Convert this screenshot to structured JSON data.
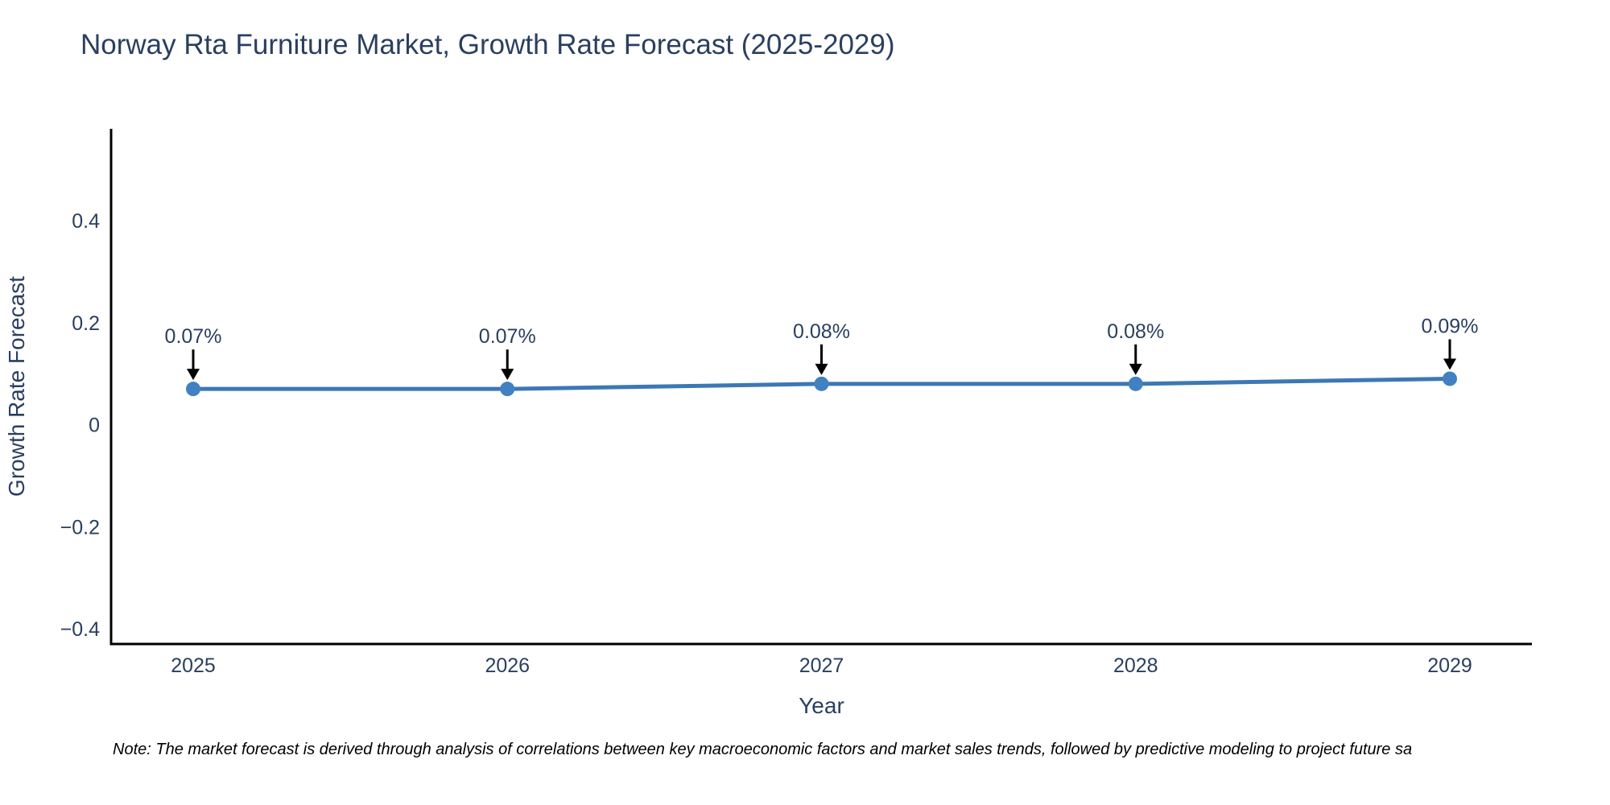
{
  "footnote": "Note: The market forecast is derived through analysis of correlations between key macroeconomic factors and market sales trends, followed by predictive modeling to project future sa",
  "chart_data": {
    "type": "line",
    "title": "Norway Rta Furniture Market, Growth Rate Forecast (2025-2029)",
    "xlabel": "Year",
    "ylabel": "Growth Rate Forecast",
    "categories": [
      "2025",
      "2026",
      "2027",
      "2028",
      "2029"
    ],
    "series": [
      {
        "name": "Growth Rate Forecast",
        "values": [
          0.07,
          0.07,
          0.08,
          0.08,
          0.09
        ]
      }
    ],
    "point_labels": [
      "0.07%",
      "0.07%",
      "0.08%",
      "0.08%",
      "0.09%"
    ],
    "ylim": [
      -0.43,
      0.58
    ],
    "ytick_values": [
      0.4,
      0.2,
      0,
      -0.2,
      -0.4
    ],
    "ytick_labels": [
      "0.4",
      "0.2",
      "0",
      "−0.2",
      "−0.4"
    ],
    "grid": false,
    "legend_position": "none",
    "annotations_have_arrows": true,
    "colors": {
      "line": "#3c78b4",
      "marker": "#4181c2",
      "text": "#2a3f5f",
      "axis": "#000000",
      "annotation_arrow": "#000000",
      "background": "#ffffff"
    }
  }
}
